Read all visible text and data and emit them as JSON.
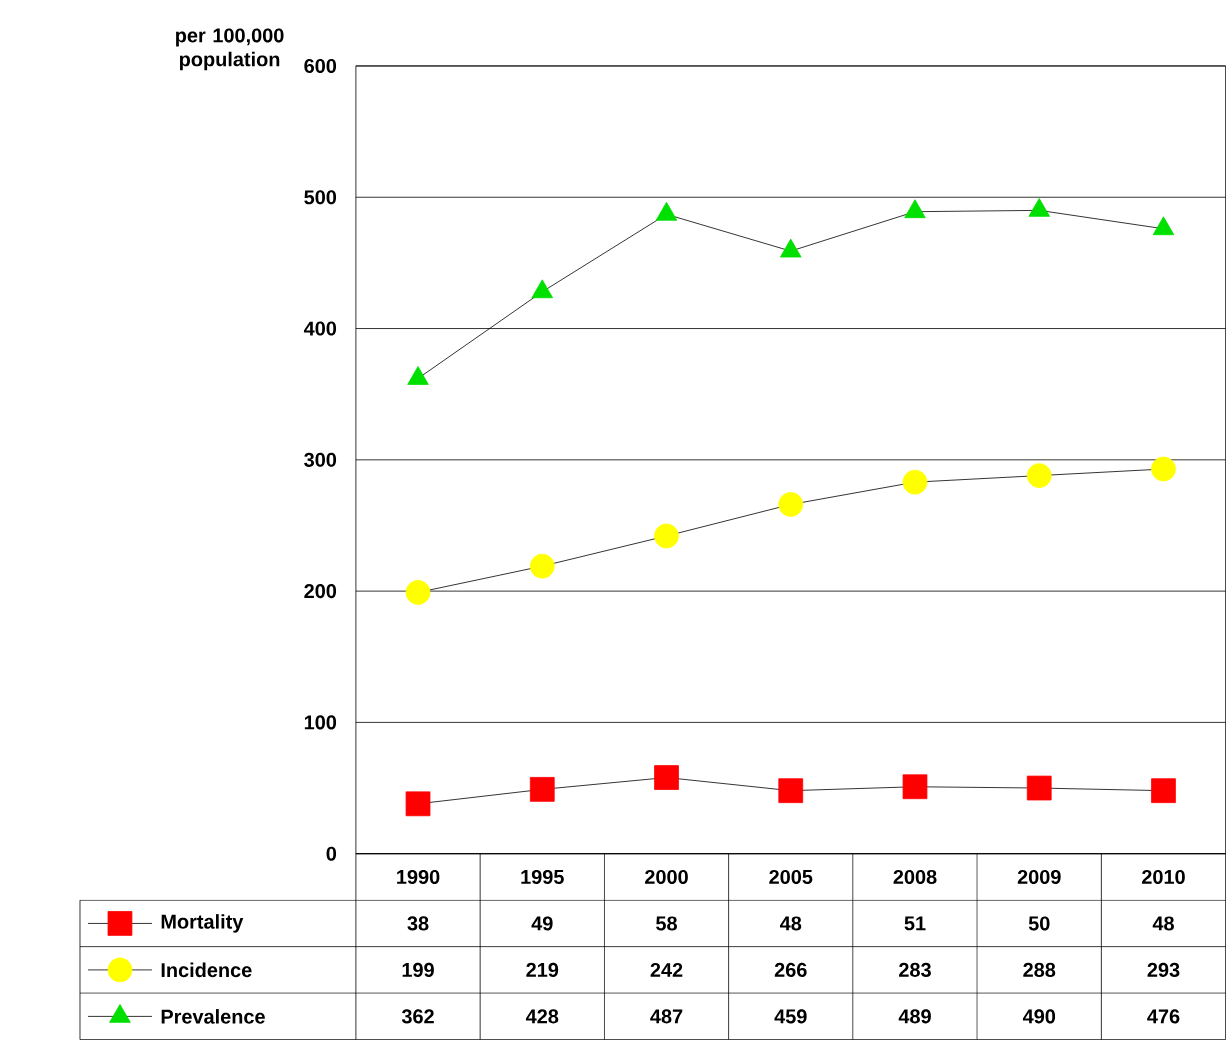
{
  "chart_data": {
    "type": "line",
    "ylabel": "per 100,000 population",
    "categories": [
      "1990",
      "1995",
      "2000",
      "2005",
      "2008",
      "2009",
      "2010"
    ],
    "series": [
      {
        "name": "Mortality",
        "color": "#ff0000",
        "marker": "square",
        "values": [
          38,
          49,
          58,
          48,
          51,
          50,
          48
        ]
      },
      {
        "name": "Incidence",
        "color": "#ffff00",
        "marker": "circle",
        "values": [
          199,
          219,
          242,
          266,
          283,
          288,
          293
        ]
      },
      {
        "name": "Prevalence",
        "color": "#00e000",
        "marker": "triangle",
        "values": [
          362,
          428,
          487,
          459,
          489,
          490,
          476
        ]
      }
    ],
    "ylim": [
      0,
      600
    ],
    "yticks": [
      0,
      100,
      200,
      300,
      400,
      500,
      600
    ],
    "grid": "y",
    "legend": "bottom left",
    "data_labels": true
  }
}
